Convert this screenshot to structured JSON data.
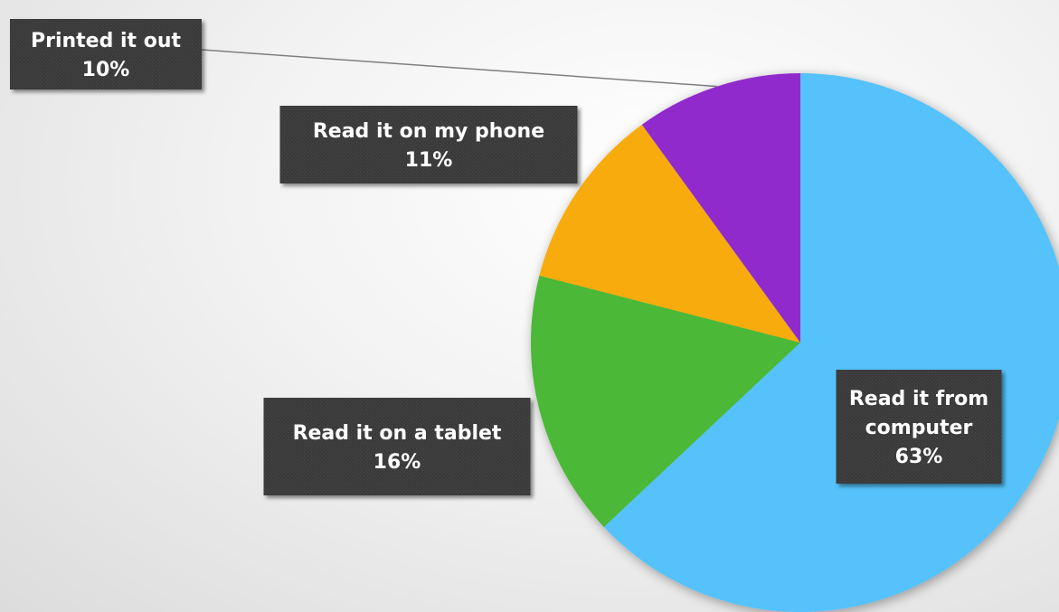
{
  "chart_data": {
    "type": "pie",
    "title": "",
    "slices": [
      {
        "label": "Read it from computer",
        "label_lines": [
          "Read it from",
          "computer"
        ],
        "value": 63,
        "value_label": "63%",
        "color": "#55c2fb"
      },
      {
        "label": "Read it on a tablet",
        "label_lines": [
          "Read it on a tablet"
        ],
        "value": 16,
        "value_label": "16%",
        "color": "#4bb837"
      },
      {
        "label": "Read it on my phone",
        "label_lines": [
          "Read it on my phone"
        ],
        "value": 11,
        "value_label": "11%",
        "color": "#f7ab07"
      },
      {
        "label": "Printed it out",
        "label_lines": [
          "Printed it out"
        ],
        "value": 10,
        "value_label": "10%",
        "color": "#9029cc"
      }
    ],
    "start": "12 o'clock",
    "direction": "clockwise",
    "legend": "none",
    "data_labels": "callout boxes",
    "label_box_color": "#3b3b3b"
  }
}
